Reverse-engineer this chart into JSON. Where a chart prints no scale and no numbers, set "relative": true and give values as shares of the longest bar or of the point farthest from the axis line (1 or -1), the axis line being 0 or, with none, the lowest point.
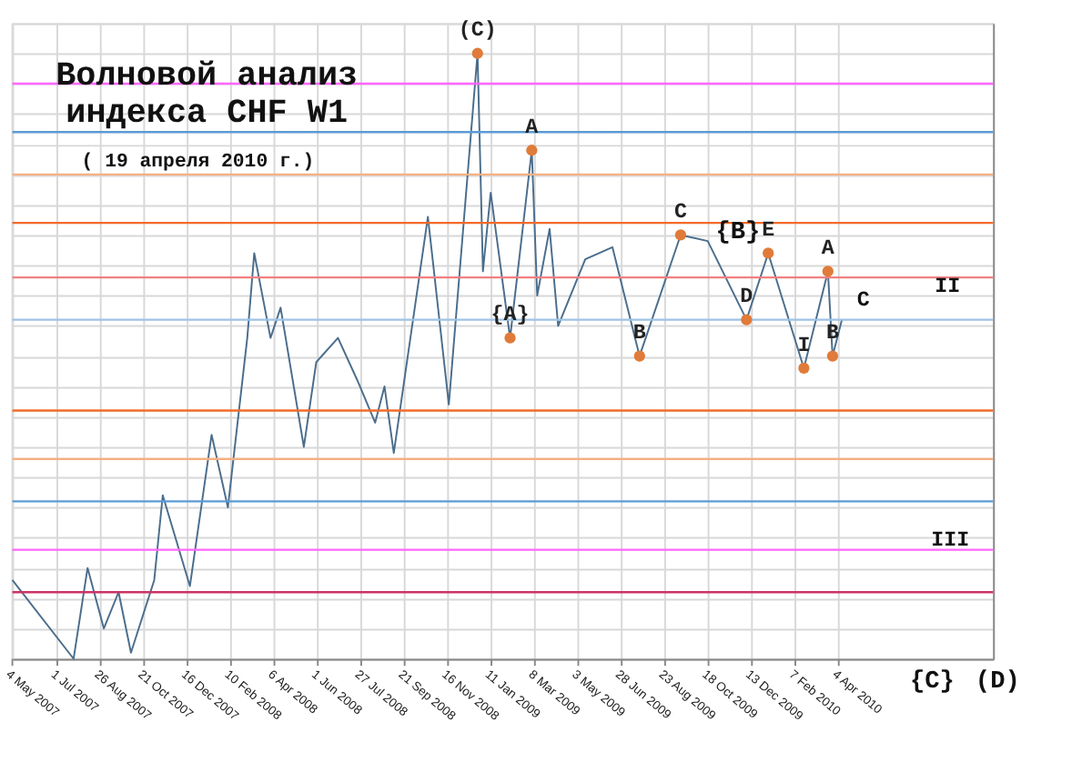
{
  "chart_data": {
    "type": "line",
    "relative": true,
    "title": "Волновой анализ\nиндекса CHF W1",
    "subtitle": "( 19 апреля 2010 г.)",
    "x": [
      "2007-05-04",
      "2007-07-22",
      "2007-08-09",
      "2007-08-30",
      "2007-09-18",
      "2007-10-04",
      "2007-11-03",
      "2007-11-14",
      "2007-12-19",
      "2008-01-16",
      "2008-02-06",
      "2008-03-02",
      "2008-03-11",
      "2008-04-01",
      "2008-04-14",
      "2008-05-14",
      "2008-05-30",
      "2008-06-27",
      "2008-07-22",
      "2008-08-14",
      "2008-08-26",
      "2008-09-07",
      "2008-10-21",
      "2008-11-17",
      "2008-12-24",
      "2008-12-31",
      "2009-01-10",
      "2009-02-04",
      "2009-03-04",
      "2009-03-11",
      "2009-03-27",
      "2009-04-07",
      "2009-05-12",
      "2009-06-16",
      "2009-07-21",
      "2009-09-12",
      "2009-10-17",
      "2009-12-06",
      "2010-01-03",
      "2010-02-18",
      "2010-03-21",
      "2010-03-27",
      "2010-04-08"
    ],
    "series": [
      {
        "color": "#4a6d8c",
        "values": [
          0.13,
          0.0,
          0.15,
          0.05,
          0.11,
          0.01,
          0.13,
          0.27,
          0.12,
          0.37,
          0.25,
          0.53,
          0.67,
          0.53,
          0.58,
          0.35,
          0.49,
          0.53,
          0.46,
          0.39,
          0.45,
          0.34,
          0.73,
          0.42,
          1.0,
          0.64,
          0.77,
          0.53,
          0.84,
          0.6,
          0.71,
          0.55,
          0.66,
          0.68,
          0.5,
          0.7,
          0.69,
          0.56,
          0.67,
          0.48,
          0.64,
          0.5,
          0.56
        ]
      }
    ],
    "xlim": [
      "2007-05-04",
      "2010-10-20"
    ],
    "xticks": [
      {
        "value": "2007-05-04",
        "label": "4 May 2007"
      },
      {
        "value": "2007-07-01",
        "label": "1 Jul 2007"
      },
      {
        "value": "2007-08-26",
        "label": "26 Aug 2007"
      },
      {
        "value": "2007-10-21",
        "label": "21 Oct 2007"
      },
      {
        "value": "2007-12-16",
        "label": "16 Dec 2007"
      },
      {
        "value": "2008-02-10",
        "label": "10 Feb 2008"
      },
      {
        "value": "2008-04-06",
        "label": "6 Apr 2008"
      },
      {
        "value": "2008-06-01",
        "label": "1 Jun 2008"
      },
      {
        "value": "2008-07-27",
        "label": "27 Jul 2008"
      },
      {
        "value": "2008-09-21",
        "label": "21 Sep 2008"
      },
      {
        "value": "2008-11-16",
        "label": "16 Nov 2008"
      },
      {
        "value": "2009-01-11",
        "label": "11 Jan 2009"
      },
      {
        "value": "2009-03-08",
        "label": "8 Mar 2009"
      },
      {
        "value": "2009-05-03",
        "label": "3 May 2009"
      },
      {
        "value": "2009-06-28",
        "label": "28 Jun 2009"
      },
      {
        "value": "2009-08-23",
        "label": "23 Aug 2009"
      },
      {
        "value": "2009-10-18",
        "label": "18 Oct 2009"
      },
      {
        "value": "2009-12-13",
        "label": "13 Dec 2009"
      },
      {
        "value": "2010-02-07",
        "label": "7 Feb 2010"
      },
      {
        "value": "2010-04-04",
        "label": "4 Apr 2010"
      }
    ],
    "grid": true,
    "tick_labels": "x",
    "ref_lines": [
      {
        "axis": "y",
        "value": 0.95,
        "color": "#ff66ff"
      },
      {
        "axis": "y",
        "value": 0.87,
        "color": "#5b9bd5"
      },
      {
        "axis": "y",
        "value": 0.8,
        "color": "#f4b183"
      },
      {
        "axis": "y",
        "value": 0.72,
        "color": "#f26b2a"
      },
      {
        "axis": "y",
        "value": 0.63,
        "color": "#f08080"
      },
      {
        "axis": "y",
        "value": 0.56,
        "color": "#9dc3e6"
      },
      {
        "axis": "y",
        "value": 0.41,
        "color": "#f26b2a"
      },
      {
        "axis": "y",
        "value": 0.33,
        "color": "#f4b183"
      },
      {
        "axis": "y",
        "value": 0.26,
        "color": "#5b9bd5"
      },
      {
        "axis": "y",
        "value": 0.18,
        "color": "#ff66ff"
      },
      {
        "axis": "y",
        "value": 0.11,
        "color": "#cc3366"
      }
    ],
    "annotations": [
      {
        "text": "(C)",
        "x": "2008-12-24",
        "y": 1.0
      },
      {
        "text": "A",
        "x": "2009-03-04",
        "y": 0.84
      },
      {
        "text": "{A}",
        "x": "2009-02-04",
        "y": 0.53
      },
      {
        "text": "B",
        "x": "2009-07-21",
        "y": 0.5
      },
      {
        "text": "C",
        "x": "2009-09-12",
        "y": 0.7
      },
      {
        "text": "D",
        "x": "2009-12-06",
        "y": 0.56
      },
      {
        "text": "E",
        "x": "2010-01-03",
        "y": 0.67
      },
      {
        "text": "I",
        "x": "2010-02-18",
        "y": 0.48
      },
      {
        "text": "A",
        "x": "2010-03-21",
        "y": 0.64
      },
      {
        "text": "B",
        "x": "2010-03-27",
        "y": 0.5
      },
      "{B}",
      "C",
      "II",
      "III",
      "{C}",
      "(D)"
    ]
  }
}
